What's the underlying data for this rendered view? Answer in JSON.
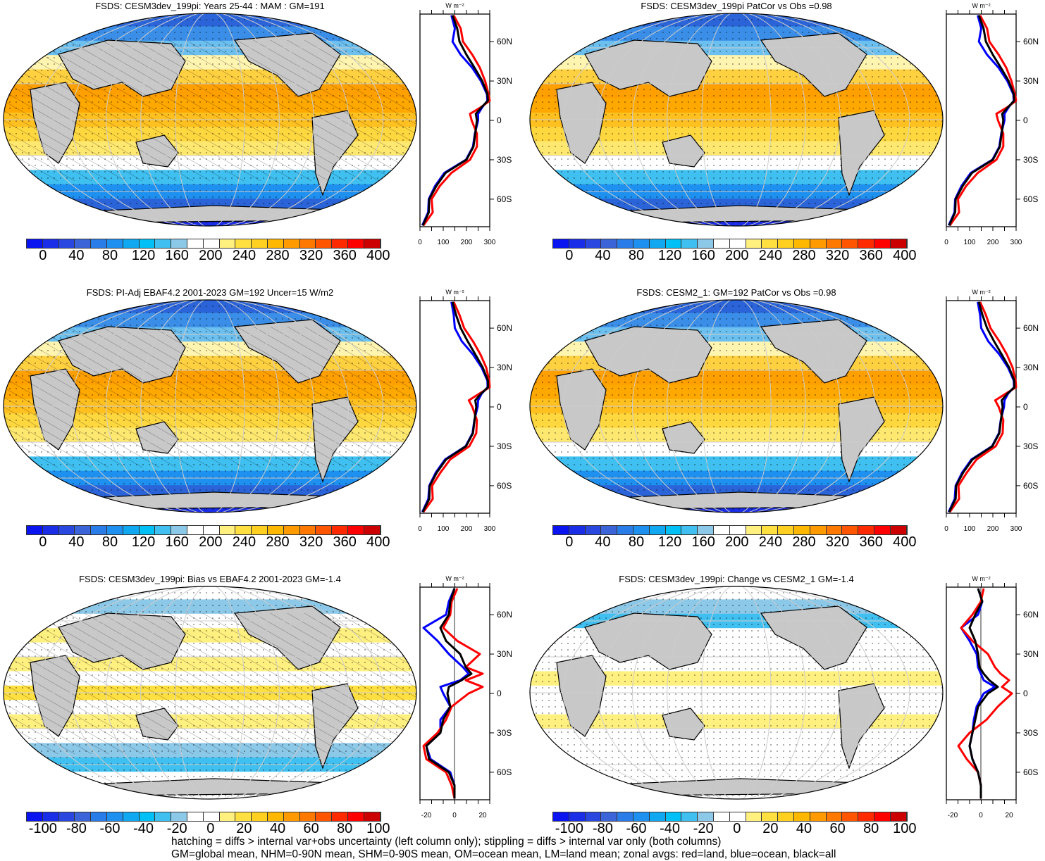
{
  "panels": [
    {
      "title": "FSDS: CESM3dev_199pi: Years 25-44 : MAM : GM=191",
      "scale": "abs",
      "profile_kind": "abs1",
      "land_hatch": true
    },
    {
      "title": "FSDS: CESM3dev_199pi PatCor vs Obs =0.98",
      "scale": "abs",
      "profile_kind": "abs1",
      "land_hatch": false
    },
    {
      "title": "FSDS: PI-Adj EBAF4.2 2001-2023 GM=192 Uncer=15 W/m2",
      "scale": "abs",
      "profile_kind": "abs2",
      "land_hatch": true
    },
    {
      "title": "FSDS: CESM2_1: GM=192 PatCor vs Obs =0.98",
      "scale": "abs",
      "profile_kind": "abs2",
      "land_hatch": false
    },
    {
      "title": "FSDS: CESM3dev_199pi: Bias vs EBAF4.2 2001-2023 GM=-1.4",
      "scale": "diff",
      "profile_kind": "bias",
      "land_hatch": true
    },
    {
      "title": "FSDS: CESM3dev_199pi: Change vs CESM2_1 GM=-1.4",
      "scale": "diff",
      "profile_kind": "change",
      "land_hatch": false
    }
  ],
  "profile": {
    "unit_label": "W m⁻²",
    "lat_labels": [
      "60N",
      "30N",
      "0",
      "30S",
      "60S"
    ],
    "abs_xticks": [
      "0",
      "100",
      "200",
      "300"
    ],
    "diff_xticks": [
      "-20",
      "0",
      "20"
    ],
    "colors": {
      "land": "#ff0000",
      "ocean": "#0000ff",
      "all": "#000000"
    },
    "lats": [
      80,
      70,
      60,
      50,
      40,
      30,
      20,
      15,
      10,
      5,
      0,
      -10,
      -20,
      -30,
      -40,
      -50,
      -60,
      -70,
      -80
    ],
    "series": {
      "abs1": {
        "all": [
          140,
          160,
          170,
          200,
          235,
          268,
          290,
          292,
          265,
          240,
          245,
          238,
          230,
          200,
          110,
          70,
          40,
          38,
          12
        ],
        "land": [
          145,
          175,
          185,
          225,
          258,
          280,
          295,
          300,
          262,
          215,
          222,
          245,
          245,
          215,
          135,
          85,
          50,
          55,
          15
        ],
        "ocean": [
          135,
          150,
          140,
          175,
          225,
          262,
          288,
          290,
          268,
          250,
          250,
          236,
          228,
          198,
          105,
          65,
          38,
          35,
          10
        ]
      },
      "abs2": {
        "all": [
          140,
          155,
          175,
          205,
          238,
          270,
          292,
          293,
          262,
          238,
          242,
          235,
          228,
          198,
          112,
          72,
          42,
          40,
          12
        ],
        "land": [
          145,
          170,
          190,
          228,
          260,
          285,
          298,
          300,
          255,
          210,
          225,
          245,
          242,
          212,
          130,
          88,
          52,
          55,
          15
        ],
        "ocean": [
          135,
          145,
          150,
          180,
          228,
          265,
          290,
          291,
          265,
          250,
          248,
          234,
          226,
          196,
          108,
          68,
          40,
          36,
          10
        ]
      },
      "bias": {
        "all": [
          0,
          -3,
          -4,
          -10,
          -6,
          4,
          8,
          12,
          5,
          -4,
          -5,
          -3,
          -8,
          -10,
          -20,
          -18,
          -4,
          0,
          0
        ],
        "land": [
          2,
          -2,
          -3,
          -8,
          2,
          18,
          8,
          20,
          8,
          20,
          10,
          -2,
          -6,
          -12,
          -22,
          -20,
          -6,
          -2,
          0
        ],
        "ocean": [
          0,
          -4,
          -6,
          -22,
          -12,
          -4,
          6,
          10,
          4,
          -10,
          -8,
          -3,
          -10,
          -10,
          -20,
          -17,
          -3,
          0,
          0
        ]
      },
      "change": {
        "all": [
          -2,
          1,
          -4,
          -8,
          -4,
          -2,
          -1,
          2,
          6,
          12,
          5,
          -2,
          -4,
          -6,
          -8,
          -6,
          -2,
          0,
          0
        ],
        "land": [
          2,
          0,
          -6,
          -14,
          -6,
          5,
          10,
          14,
          20,
          15,
          22,
          12,
          4,
          -8,
          -16,
          -10,
          -2,
          0,
          0
        ],
        "ocean": [
          -2,
          1,
          -2,
          -14,
          -8,
          -3,
          -2,
          0,
          2,
          10,
          2,
          -3,
          -5,
          -6,
          -8,
          -6,
          -2,
          0,
          0
        ]
      }
    }
  },
  "colorbars": {
    "abs_labels": [
      "0",
      "40",
      "80",
      "120",
      "160",
      "200",
      "240",
      "280",
      "320",
      "360",
      "400"
    ],
    "diff_labels": [
      "-100",
      "-80",
      "-60",
      "-40",
      "-20",
      "0",
      "20",
      "40",
      "60",
      "80",
      "100"
    ],
    "colors": [
      "#0a14f0",
      "#1a2ee8",
      "#2a48e0",
      "#3a64d8",
      "#2a7de8",
      "#1e90f0",
      "#10a8f0",
      "#00c0f5",
      "#40c0f0",
      "#8cc8e8",
      "#ffffff",
      "#ffffff",
      "#fff080",
      "#ffe040",
      "#ffd020",
      "#ffb800",
      "#ff9a00",
      "#ff7800",
      "#ff5500",
      "#ff2a00",
      "#ff0000",
      "#cc0000"
    ]
  },
  "footer": {
    "line1": "hatching = diffs > internal var+obs uncertainty (left column only); stippling = diffs > internal var only (both columns)",
    "line2": "GM=global mean, NHM=0-90N mean, SHM=0-90S mean, OM=ocean mean, LM=land mean; zonal avgs: red=land, blue=ocean, black=all"
  }
}
